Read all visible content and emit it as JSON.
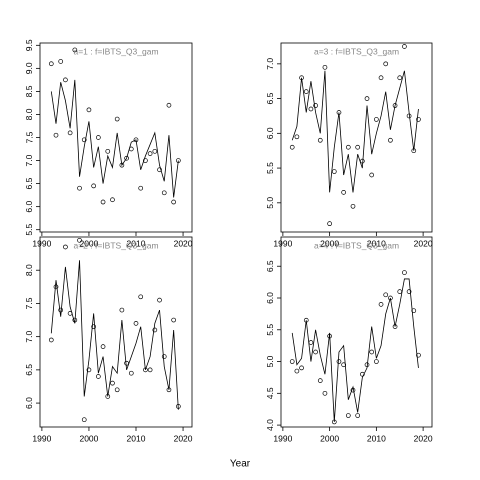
{
  "xlabel": "Year",
  "chart_data": [
    {
      "type": "scatter",
      "title": "a=1  :  f=IBTS_Q3_gam",
      "x": [
        1992,
        1993,
        1994,
        1995,
        1996,
        1997,
        1998,
        1999,
        2000,
        2001,
        2002,
        2003,
        2004,
        2005,
        2006,
        2007,
        2008,
        2009,
        2010,
        2011,
        2012,
        2013,
        2014,
        2015,
        2016,
        2017,
        2018,
        2019
      ],
      "series": [
        {
          "style": "points",
          "color": "#000000",
          "values": [
            9.1,
            7.55,
            9.15,
            8.75,
            7.6,
            9.4,
            6.4,
            7.45,
            8.1,
            6.45,
            7.5,
            6.1,
            7.2,
            6.15,
            7.9,
            6.9,
            7.05,
            7.25,
            7.45,
            6.4,
            7.0,
            7.15,
            7.2,
            6.8,
            6.3,
            8.2,
            6.1,
            7.0
          ]
        },
        {
          "style": "line",
          "color": "#000000",
          "values": [
            8.5,
            7.8,
            8.7,
            8.3,
            7.7,
            8.75,
            6.65,
            7.3,
            7.85,
            6.85,
            7.3,
            6.5,
            7.1,
            6.85,
            7.6,
            6.9,
            7.05,
            7.4,
            7.45,
            6.8,
            7.1,
            7.35,
            7.6,
            6.9,
            6.55,
            7.55,
            6.2,
            7.0
          ]
        }
      ],
      "xlim": [
        1989.6,
        2021.9
      ],
      "xticks": [
        1990,
        2000,
        2010,
        2020
      ],
      "ylim": [
        5.45,
        9.55
      ],
      "yticks": [
        5.5,
        {
          "value": 6,
          "label": "6.0"
        },
        6.5,
        {
          "value": 7,
          "label": "7.0"
        },
        7.5,
        {
          "value": 8,
          "label": "8.0"
        },
        8.5,
        {
          "value": 9,
          "label": "9.0"
        },
        9.5
      ]
    },
    {
      "type": "scatter",
      "title": "a=3  :  f=IBTS_Q3_gam",
      "x": [
        1992,
        1993,
        1994,
        1995,
        1996,
        1997,
        1998,
        1999,
        2000,
        2001,
        2002,
        2003,
        2004,
        2005,
        2006,
        2007,
        2008,
        2009,
        2010,
        2011,
        2012,
        2013,
        2014,
        2015,
        2016,
        2017,
        2018,
        2019
      ],
      "series": [
        {
          "style": "points",
          "color": "#000000",
          "values": [
            5.8,
            5.95,
            6.8,
            6.6,
            6.35,
            6.4,
            5.9,
            6.95,
            4.7,
            5.45,
            6.3,
            5.15,
            5.8,
            4.95,
            5.8,
            5.6,
            6.5,
            5.4,
            6.2,
            6.8,
            7.0,
            5.9,
            6.4,
            6.8,
            7.25,
            6.25,
            5.75,
            6.2
          ]
        },
        {
          "style": "line",
          "color": "#000000",
          "values": [
            5.9,
            6.1,
            6.8,
            6.3,
            6.75,
            6.3,
            6.0,
            6.9,
            5.15,
            5.8,
            6.3,
            5.4,
            5.7,
            5.15,
            5.7,
            5.5,
            6.4,
            5.7,
            6.0,
            6.25,
            6.6,
            6.05,
            6.4,
            6.65,
            6.9,
            6.3,
            5.75,
            6.35
          ]
        }
      ],
      "xlim": [
        1989.6,
        2021.9
      ],
      "xticks": [
        1990,
        2000,
        2010,
        2020
      ],
      "ylim": [
        4.58,
        7.3
      ],
      "yticks": [
        {
          "value": 5,
          "label": "5.0"
        },
        5.5,
        {
          "value": 6,
          "label": "6.0"
        },
        6.5,
        {
          "value": 7,
          "label": "7.0"
        }
      ]
    },
    {
      "type": "scatter",
      "title": "a=2  :  f=IBTS_Q3_gam",
      "x": [
        1992,
        1993,
        1994,
        1995,
        1996,
        1997,
        1998,
        1999,
        2000,
        2001,
        2002,
        2003,
        2004,
        2005,
        2006,
        2007,
        2008,
        2009,
        2010,
        2011,
        2012,
        2013,
        2014,
        2015,
        2016,
        2017,
        2018,
        2019
      ],
      "series": [
        {
          "style": "points",
          "color": "#000000",
          "values": [
            6.95,
            7.75,
            7.4,
            8.35,
            7.35,
            7.25,
            8.45,
            5.75,
            6.5,
            7.15,
            6.4,
            6.85,
            6.1,
            6.3,
            6.2,
            7.4,
            6.6,
            6.45,
            7.2,
            7.6,
            6.5,
            6.5,
            7.1,
            7.55,
            6.7,
            6.2,
            7.25,
            5.95
          ]
        },
        {
          "style": "line",
          "color": "#000000",
          "values": [
            7.05,
            7.85,
            7.3,
            8.05,
            7.45,
            7.2,
            8.15,
            6.1,
            6.65,
            7.35,
            6.45,
            6.7,
            6.1,
            6.55,
            6.45,
            7.25,
            6.5,
            6.7,
            6.9,
            7.15,
            6.5,
            6.7,
            7.2,
            7.4,
            6.55,
            6.2,
            7.1,
            5.9
          ]
        }
      ],
      "xlim": [
        1989.6,
        2021.9
      ],
      "xticks": [
        1990,
        2000,
        2010,
        2020
      ],
      "ylim": [
        5.64,
        8.5
      ],
      "yticks": [
        {
          "value": 6,
          "label": "6.0"
        },
        6.5,
        {
          "value": 7,
          "label": "7.0"
        },
        7.5,
        {
          "value": 8,
          "label": "8.0"
        }
      ]
    },
    {
      "type": "scatter",
      "title": "a=4  :  f=IBTS_Q3_gam",
      "x": [
        1992,
        1993,
        1994,
        1995,
        1996,
        1997,
        1998,
        1999,
        2000,
        2001,
        2002,
        2003,
        2004,
        2005,
        2006,
        2007,
        2008,
        2009,
        2010,
        2011,
        2012,
        2013,
        2014,
        2015,
        2016,
        2017,
        2018,
        2019
      ],
      "series": [
        {
          "style": "points",
          "color": "#000000",
          "values": [
            5.0,
            4.85,
            4.9,
            5.65,
            5.3,
            5.15,
            4.7,
            4.5,
            5.4,
            4.05,
            5.0,
            4.95,
            4.15,
            4.55,
            4.15,
            4.8,
            4.95,
            5.15,
            5.0,
            5.9,
            6.05,
            6.0,
            5.55,
            6.1,
            6.4,
            6.1,
            5.8,
            5.1
          ]
        },
        {
          "style": "line",
          "color": "#000000",
          "values": [
            5.45,
            4.95,
            5.05,
            5.65,
            5.0,
            5.5,
            5.1,
            4.8,
            5.45,
            4.05,
            5.15,
            5.25,
            4.4,
            4.6,
            4.2,
            4.75,
            4.9,
            5.55,
            5.05,
            5.25,
            5.75,
            6.0,
            5.55,
            5.9,
            6.3,
            6.3,
            5.55,
            4.9
          ]
        }
      ],
      "xlim": [
        1989.6,
        2021.9
      ],
      "xticks": [
        1990,
        2000,
        2010,
        2020
      ],
      "ylim": [
        3.97,
        6.96
      ],
      "yticks": [
        {
          "value": 4,
          "label": "4.0"
        },
        4.5,
        {
          "value": 5,
          "label": "5.0"
        },
        5.5,
        {
          "value": 6,
          "label": "6.0"
        },
        6.5
      ]
    }
  ]
}
